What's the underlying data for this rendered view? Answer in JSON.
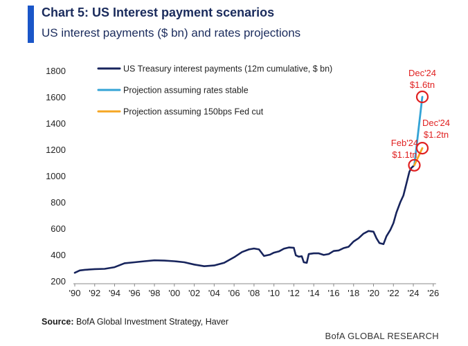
{
  "header": {
    "title": "Chart 5: US Interest payment scenarios",
    "subtitle": "US interest payments ($ bn) and rates projections"
  },
  "footer": {
    "source_label": "Source:",
    "source_text": " BofA Global Investment Strategy, Haver",
    "brand": "BofA GLOBAL RESEARCH"
  },
  "colors": {
    "accent": "#1a56c8",
    "history": "#17245c",
    "stable": "#33a3d6",
    "cut": "#f5a623",
    "annotation": "#e02020"
  },
  "chart_data": {
    "type": "line",
    "title": "Chart 5: US Interest payment scenarios",
    "subtitle": "US interest payments ($ bn) and rates projections",
    "xlim": [
      1990,
      2026.5
    ],
    "ylim": [
      200,
      1800
    ],
    "x_ticks": [
      1990,
      1992,
      1994,
      1996,
      1998,
      2000,
      2002,
      2004,
      2006,
      2008,
      2010,
      2012,
      2014,
      2016,
      2018,
      2020,
      2022,
      2024,
      2026
    ],
    "x_tick_labels": [
      "'90",
      "'92",
      "'94",
      "'96",
      "'98",
      "'00",
      "'02",
      "'04",
      "'06",
      "'08",
      "'10",
      "'12",
      "'14",
      "'16",
      "'18",
      "'20",
      "'22",
      "'24",
      "'26"
    ],
    "y_ticks": [
      200,
      400,
      600,
      800,
      1000,
      1200,
      1400,
      1600,
      1800
    ],
    "y_tick_labels": [
      "200",
      "400",
      "600",
      "800",
      "1000",
      "1200",
      "1400",
      "1600",
      "1800"
    ],
    "grid": false,
    "legend_position": "top-left",
    "series": [
      {
        "name": "US Treasury interest payments (12m cumulative, $ bn)",
        "color": "#17245c",
        "points": [
          [
            1990,
            262
          ],
          [
            1990.5,
            280
          ],
          [
            1991,
            285
          ],
          [
            1992,
            290
          ],
          [
            1993,
            292
          ],
          [
            1994,
            305
          ],
          [
            1995,
            335
          ],
          [
            1996,
            342
          ],
          [
            1997,
            350
          ],
          [
            1998,
            357
          ],
          [
            1999,
            355
          ],
          [
            2000,
            350
          ],
          [
            2001,
            342
          ],
          [
            2002,
            325
          ],
          [
            2003,
            312
          ],
          [
            2004,
            318
          ],
          [
            2005,
            338
          ],
          [
            2006,
            380
          ],
          [
            2006.8,
            420
          ],
          [
            2007.5,
            440
          ],
          [
            2008,
            447
          ],
          [
            2008.5,
            440
          ],
          [
            2009,
            390
          ],
          [
            2009.6,
            400
          ],
          [
            2010,
            415
          ],
          [
            2010.5,
            425
          ],
          [
            2011,
            445
          ],
          [
            2011.5,
            455
          ],
          [
            2012,
            452
          ],
          [
            2012.2,
            395
          ],
          [
            2012.5,
            385
          ],
          [
            2012.8,
            388
          ],
          [
            2013,
            342
          ],
          [
            2013.3,
            338
          ],
          [
            2013.5,
            405
          ],
          [
            2014,
            410
          ],
          [
            2014.5,
            410
          ],
          [
            2015,
            398
          ],
          [
            2015.5,
            405
          ],
          [
            2016,
            428
          ],
          [
            2016.5,
            432
          ],
          [
            2017,
            450
          ],
          [
            2017.5,
            460
          ],
          [
            2018,
            500
          ],
          [
            2018.5,
            525
          ],
          [
            2019,
            560
          ],
          [
            2019.5,
            580
          ],
          [
            2020,
            575
          ],
          [
            2020.3,
            525
          ],
          [
            2020.6,
            488
          ],
          [
            2021,
            480
          ],
          [
            2021.3,
            540
          ],
          [
            2021.7,
            590
          ],
          [
            2022,
            640
          ],
          [
            2022.3,
            720
          ],
          [
            2022.7,
            800
          ],
          [
            2023,
            850
          ],
          [
            2023.3,
            940
          ],
          [
            2023.6,
            1030
          ],
          [
            2023.8,
            1060
          ],
          [
            2024.1,
            1080
          ]
        ]
      },
      {
        "name": "Projection assuming rates stable",
        "color": "#33a3d6",
        "points": [
          [
            2024.1,
            1080
          ],
          [
            2024.9,
            1600
          ]
        ]
      },
      {
        "name": "Projection assuming 150bps Fed cut",
        "color": "#f5a623",
        "points": [
          [
            2024.1,
            1080
          ],
          [
            2024.9,
            1210
          ]
        ]
      }
    ],
    "annotations": [
      {
        "lines": [
          "Dec'24",
          "$1.6tn"
        ],
        "x": 2024.9,
        "y": 1600,
        "text_side": "above"
      },
      {
        "lines": [
          "Dec'24",
          "$1.2tn"
        ],
        "x": 2024.9,
        "y": 1210,
        "text_side": "above-right"
      },
      {
        "lines": [
          "Feb'24",
          "$1.1tn"
        ],
        "x": 2024.1,
        "y": 1080,
        "text_side": "above-left"
      }
    ]
  }
}
